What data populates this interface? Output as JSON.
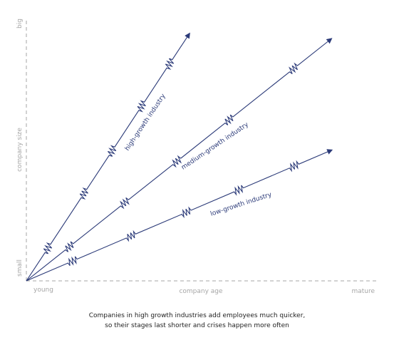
{
  "axes": {
    "y_top_label": "big",
    "y_bottom_label": "small",
    "y_title": "company size",
    "x_left_label": "young",
    "x_title": "company age",
    "x_right_label": "mature"
  },
  "lines": [
    {
      "label": "high-growth industry"
    },
    {
      "label": "medium-growth industry"
    },
    {
      "label": "low-growth industry"
    }
  ],
  "caption": {
    "line1": "Companies in high growth industries add employees much quicker,",
    "line2": "so their stages last shorter and crises happen more often"
  },
  "colors": {
    "line": "#2b3a78",
    "axis": "#a6a6a6",
    "caption": "#222222"
  }
}
